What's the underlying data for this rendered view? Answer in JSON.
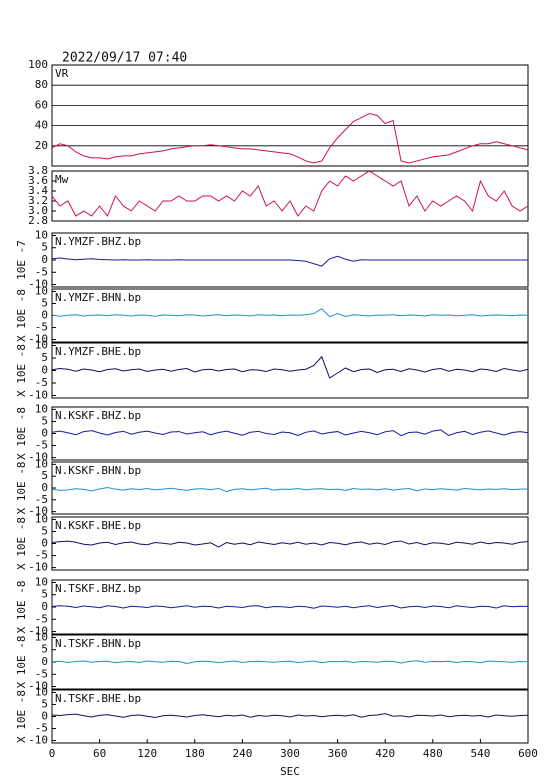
{
  "chart_data": {
    "type": "line",
    "title": "2022/09/17 07:40",
    "xlabel": "SEC",
    "xlim": [
      0,
      600
    ],
    "xticks": [
      0,
      60,
      120,
      180,
      240,
      300,
      360,
      420,
      480,
      540,
      600
    ],
    "x": [
      0,
      10,
      20,
      30,
      40,
      50,
      60,
      70,
      80,
      90,
      100,
      110,
      120,
      130,
      140,
      150,
      160,
      170,
      180,
      190,
      200,
      210,
      220,
      230,
      240,
      250,
      260,
      270,
      280,
      290,
      300,
      310,
      320,
      330,
      340,
      350,
      360,
      370,
      380,
      390,
      400,
      410,
      420,
      430,
      440,
      450,
      460,
      470,
      480,
      490,
      500,
      510,
      520,
      530,
      540,
      550,
      560,
      570,
      580,
      590,
      600
    ],
    "panels": [
      {
        "ylim": [
          0,
          100
        ],
        "yticks": [
          20,
          40,
          60,
          80,
          100
        ],
        "grid": true,
        "series": [
          {
            "name": "VR",
            "color": "#d0104a",
            "values": [
              18,
              22,
              20,
              14,
              10,
              8,
              8,
              7,
              9,
              10,
              10,
              12,
              13,
              14,
              15,
              17,
              18,
              19,
              20,
              20,
              21,
              20,
              19,
              18,
              17,
              17,
              16,
              15,
              14,
              13,
              12,
              9,
              5,
              3,
              5,
              18,
              28,
              36,
              44,
              48,
              52,
              50,
              42,
              45,
              5,
              3,
              5,
              7,
              9,
              10,
              11,
              14,
              17,
              20,
              22,
              22,
              24,
              22,
              20,
              18,
              16
            ]
          }
        ]
      },
      {
        "ylim": [
          2.8,
          3.8
        ],
        "yticks": [
          2.8,
          {
            "value": 3,
            "label": "3.0"
          },
          3.2,
          3.4,
          3.6,
          3.8
        ],
        "series": [
          {
            "name": "Mw",
            "color": "#d0104a",
            "values": [
              3.3,
              3.1,
              3.2,
              2.9,
              3.0,
              2.9,
              3.1,
              2.9,
              3.3,
              3.1,
              3.0,
              3.2,
              3.1,
              3.0,
              3.2,
              3.2,
              3.3,
              3.2,
              3.2,
              3.3,
              3.3,
              3.2,
              3.3,
              3.2,
              3.4,
              3.3,
              3.5,
              3.1,
              3.2,
              3.0,
              3.2,
              2.9,
              3.1,
              3.0,
              3.4,
              3.6,
              3.5,
              3.7,
              3.6,
              3.7,
              3.8,
              3.7,
              3.6,
              3.5,
              3.6,
              3.1,
              3.3,
              3.0,
              3.2,
              3.1,
              3.2,
              3.3,
              3.2,
              3.0,
              3.6,
              3.3,
              3.2,
              3.4,
              3.1,
              3.0,
              3.1
            ]
          }
        ]
      },
      {
        "unit_label": "10E -7",
        "ylim": [
          -11,
          11
        ],
        "yticks": [
          -10,
          -5,
          0,
          5,
          10
        ],
        "series": [
          {
            "name": "N.YMZF.BHZ.bp",
            "color": "#1a1a9a",
            "values": [
              0.5,
              0.8,
              0.4,
              0.1,
              0.3,
              0.5,
              0.2,
              0.1,
              0,
              0.1,
              0,
              0,
              0.1,
              0,
              0,
              0,
              0.1,
              0,
              0,
              0,
              0,
              0,
              0,
              0,
              0,
              0,
              0,
              0,
              0,
              0,
              0,
              -0.2,
              -0.5,
              -1.5,
              -2.5,
              0.5,
              1.5,
              0.3,
              -0.5,
              0.1,
              0,
              0,
              0,
              0,
              0,
              0,
              0,
              0,
              0,
              0,
              0,
              0,
              0,
              0,
              0,
              0,
              0,
              0,
              0,
              0,
              0
            ]
          }
        ]
      },
      {
        "unit_label": "X 10E -8",
        "ylim": [
          -11,
          11
        ],
        "yticks": [
          -10,
          -5,
          0,
          5,
          10
        ],
        "series": [
          {
            "name": "N.YMZF.BHN.bp",
            "color": "#1e8fd0",
            "values": [
              0.2,
              -0.3,
              0.1,
              0.3,
              -0.2,
              0.1,
              0.2,
              -0.1,
              0.3,
              0.1,
              -0.2,
              0.2,
              0.1,
              -0.3,
              0.2,
              0.1,
              -0.1,
              0.3,
              0.2,
              -0.2,
              0.1,
              0.3,
              -0.1,
              0.2,
              0.1,
              -0.2,
              0.3,
              0.1,
              0.2,
              -0.1,
              0.2,
              0.1,
              0.3,
              0.8,
              2.8,
              -0.5,
              0.8,
              -0.4,
              0.3,
              0.1,
              -0.2,
              0.2,
              0.1,
              0.3,
              -0.1,
              0.2,
              0.1,
              -0.2,
              0.3,
              0.1,
              0.2,
              -0.1,
              0.1,
              0.3,
              -0.2,
              0.1,
              0.2,
              0.1,
              -0.1,
              0.2,
              0.1
            ]
          }
        ]
      },
      {
        "unit_label": "X 10E -8",
        "ylim": [
          -11,
          11
        ],
        "yticks": [
          -10,
          -5,
          0,
          5,
          10
        ],
        "series": [
          {
            "name": "N.YMZF.BHE.bp",
            "color": "#101060",
            "values": [
              0.3,
              0.8,
              0.5,
              -0.3,
              0.6,
              0.2,
              -0.5,
              0.4,
              0.7,
              -0.2,
              0.3,
              0.6,
              -0.4,
              0.2,
              0.5,
              -0.3,
              0.4,
              0.8,
              -0.6,
              0.3,
              0.5,
              -0.2,
              0.4,
              0.6,
              -0.5,
              0.3,
              0.2,
              -0.4,
              0.6,
              0.3,
              -0.3,
              0.2,
              0.5,
              2,
              5.5,
              -3,
              -1,
              1,
              -0.5,
              0.4,
              0.6,
              -0.8,
              0.3,
              0.5,
              -0.4,
              0.7,
              0.2,
              -0.6,
              0.4,
              0.8,
              -0.3,
              0.5,
              0.2,
              -0.5,
              0.6,
              0.3,
              -0.4,
              0.8,
              0.2,
              -0.3,
              0.5
            ]
          }
        ]
      },
      {
        "unit_label": "X 10E -8",
        "ylim": [
          -11,
          11
        ],
        "yticks": [
          -10,
          -5,
          0,
          5,
          10
        ],
        "series": [
          {
            "name": "N.KSKF.BHZ.bp",
            "color": "#1a1a9a",
            "values": [
              0.5,
              1,
              0.3,
              -0.5,
              0.8,
              1.2,
              0.2,
              -0.6,
              0.4,
              0.9,
              -0.3,
              0.5,
              1,
              0.2,
              -0.4,
              0.6,
              0.8,
              -0.2,
              0.3,
              0.7,
              -0.5,
              0.4,
              1,
              0.1,
              -0.7,
              0.5,
              0.9,
              0,
              -0.4,
              0.6,
              0.3,
              -0.8,
              0.5,
              1.1,
              -0.2,
              0.4,
              0.8,
              -0.6,
              0.2,
              0.9,
              0.3,
              -0.5,
              0.7,
              1.2,
              -0.9,
              0.4,
              0.6,
              -0.3,
              1,
              1.5,
              -0.8,
              0.3,
              0.9,
              -0.4,
              0.5,
              1.1,
              0.2,
              -0.6,
              0.4,
              0.8,
              0.3
            ]
          }
        ]
      },
      {
        "unit_label": "X 10E -8",
        "ylim": [
          -11,
          11
        ],
        "yticks": [
          -10,
          -5,
          0,
          5,
          10
        ],
        "series": [
          {
            "name": "N.KSKF.BHN.bp",
            "color": "#1e8fd0",
            "values": [
              -0.5,
              -1,
              -0.8,
              -0.3,
              -0.6,
              -1.2,
              -0.4,
              0.2,
              -0.5,
              -0.9,
              -0.3,
              -0.7,
              -0.2,
              -0.8,
              -0.5,
              -0.1,
              -0.6,
              -1,
              -0.4,
              -0.3,
              -0.7,
              -0.2,
              -1.5,
              -0.6,
              -0.3,
              -0.8,
              -0.4,
              -0.1,
              -0.9,
              -0.5,
              -0.6,
              -0.2,
              -0.8,
              -0.4,
              -0.3,
              -0.7,
              -0.5,
              -1,
              -0.2,
              -0.6,
              -0.4,
              -0.8,
              -0.3,
              -0.9,
              -0.5,
              -0.2,
              -1.2,
              -0.4,
              -0.7,
              -0.3,
              -0.6,
              -0.9,
              -0.2,
              -0.5,
              -0.8,
              -0.4,
              -0.6,
              -0.3,
              -0.7,
              -0.5,
              -0.4
            ]
          }
        ]
      },
      {
        "unit_label": "X 10E -8",
        "ylim": [
          -11,
          11
        ],
        "yticks": [
          -10,
          -5,
          0,
          5,
          10
        ],
        "series": [
          {
            "name": "N.KSKF.BHE.bp",
            "color": "#101060",
            "values": [
              0.4,
              0.8,
              1,
              0.5,
              -0.3,
              -0.6,
              0.2,
              0.5,
              -0.4,
              0.3,
              0.6,
              -0.2,
              -0.5,
              0.4,
              0.1,
              -0.3,
              0.5,
              0.2,
              -0.6,
              -0.2,
              0.3,
              -1.5,
              0.4,
              -0.3,
              0.2,
              -0.5,
              0.6,
              0.1,
              -0.4,
              0.3,
              -0.2,
              0.5,
              -0.3,
              0.2,
              -0.6,
              0.4,
              0.1,
              -0.5,
              0.3,
              0.6,
              -0.3,
              0.2,
              -0.4,
              0.7,
              1,
              -0.2,
              0.4,
              -0.5,
              0.3,
              0.1,
              -0.4,
              0.5,
              0.2,
              -0.3,
              0.6,
              -0.1,
              0.4,
              0.2,
              -0.3,
              0.5,
              0.8
            ]
          }
        ]
      },
      {
        "unit_label": "X 10E -8",
        "ylim": [
          -11,
          11
        ],
        "yticks": [
          -10,
          -5,
          0,
          5,
          10
        ],
        "series": [
          {
            "name": "N.TSKF.BHZ.bp",
            "color": "#1a1a9a",
            "values": [
              0.2,
              0.5,
              0.3,
              -0.2,
              0.4,
              0.1,
              -0.3,
              0.5,
              0.2,
              -0.4,
              0.3,
              0.1,
              -0.2,
              0.4,
              0.2,
              -0.3,
              0.1,
              0.5,
              -0.1,
              0.3,
              0.2,
              -0.4,
              0.3,
              0.1,
              -0.2,
              0.4,
              0.5,
              -0.3,
              0.2,
              0.1,
              -0.2,
              0.3,
              0.1,
              -0.5,
              0.4,
              0.2,
              -0.1,
              0.3,
              -0.3,
              0.2,
              0.5,
              -0.2,
              0.3,
              0.6,
              -0.4,
              0.1,
              0.3,
              -0.2,
              0.4,
              0.2,
              -0.3,
              0.5,
              0.1,
              -0.2,
              0.3,
              0.2,
              -0.4,
              0.5,
              0.1,
              0.3,
              0.2
            ]
          }
        ]
      },
      {
        "unit_label": "X 10E -8",
        "ylim": [
          -11,
          11
        ],
        "yticks": [
          -10,
          -5,
          0,
          5,
          10
        ],
        "series": [
          {
            "name": "N.TSKF.BHN.bp",
            "color": "#1e8fd0",
            "values": [
              0.1,
              0.3,
              -0.2,
              0.2,
              0.4,
              -0.1,
              0.2,
              0.3,
              -0.3,
              0.1,
              0.2,
              -0.2,
              0.4,
              0.1,
              -0.1,
              0.3,
              0.2,
              -0.6,
              0.1,
              0.3,
              0.2,
              -0.3,
              0.1,
              0.4,
              -0.2,
              0.2,
              0.3,
              0.1,
              -0.1,
              0.2,
              0.3,
              -0.2,
              0.1,
              0.4,
              -0.3,
              0.2,
              0.1,
              0.3,
              -0.2,
              0.2,
              0.1,
              -0.1,
              0.3,
              0.2,
              -0.4,
              0.2,
              0.5,
              -0.1,
              0.2,
              0.1,
              0.3,
              -0.2,
              0.2,
              0.1,
              -0.3,
              0.4,
              0.2,
              0.1,
              -0.1,
              0.2,
              0.1
            ]
          }
        ]
      },
      {
        "unit_label": "X 10E -8",
        "ylim": [
          -11,
          11
        ],
        "yticks": [
          -10,
          -5,
          0,
          5,
          10
        ],
        "series": [
          {
            "name": "N.TSKF.BHE.bp",
            "color": "#101060",
            "values": [
              0.6,
              0.4,
              0.8,
              1,
              0.3,
              -0.2,
              0.5,
              0.7,
              0.2,
              -0.3,
              0.4,
              0.6,
              0.1,
              -0.4,
              0.3,
              0.5,
              0.2,
              -0.2,
              0.4,
              0.7,
              0.3,
              -0.1,
              0.5,
              0.2,
              0.6,
              -0.3,
              0.4,
              0.1,
              0.5,
              0.3,
              -0.2,
              0.6,
              0.2,
              0.4,
              -0.1,
              0.3,
              0.5,
              0.2,
              0.7,
              -0.3,
              0.4,
              0.6,
              1.2,
              0.1,
              0.3,
              -0.2,
              0.5,
              0.4,
              0.2,
              0.6,
              -0.1,
              0.3,
              0.5,
              0.2,
              0.4,
              -0.2,
              0.6,
              0.3,
              0.1,
              0.4,
              0.5
            ]
          }
        ]
      }
    ]
  }
}
